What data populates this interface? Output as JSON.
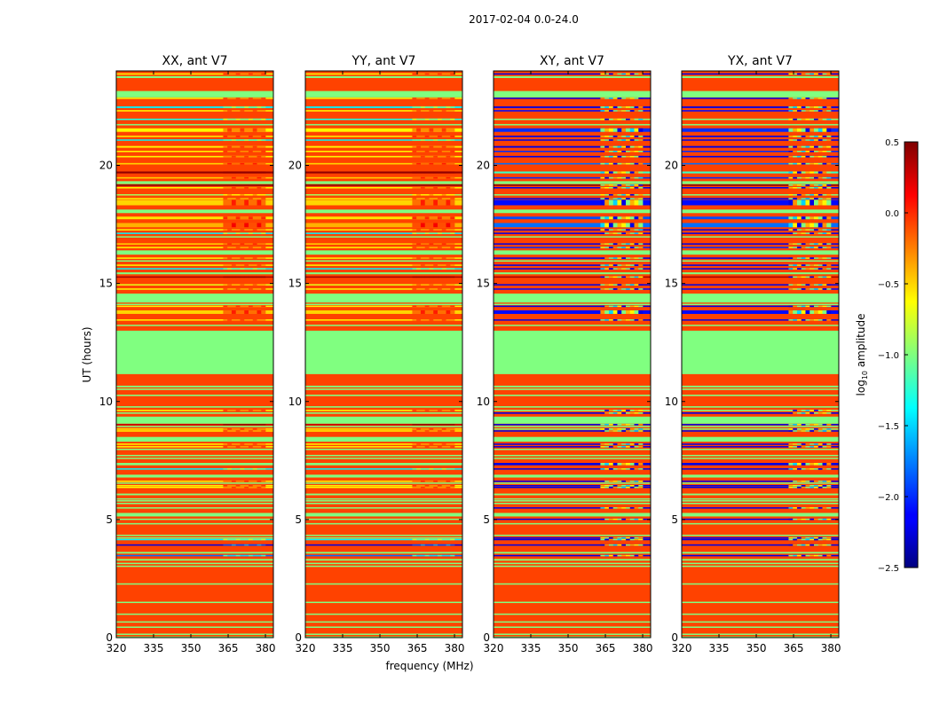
{
  "chart_data": {
    "type": "heatmap",
    "title": "2017-02-04 0.0-24.0",
    "xlabel": "frequency (MHz)",
    "ylabel": "UT (hours)",
    "xlim": [
      320,
      383.2
    ],
    "ylim": [
      0,
      24
    ],
    "xticks": [
      320,
      335,
      350,
      365,
      380
    ],
    "yticks": [
      0,
      5,
      10,
      15,
      20
    ],
    "colormap": "jet",
    "colorbar": {
      "label": "log10 amplitude",
      "label_main": "log",
      "label_sub": "10",
      "label_rest": " amplitude",
      "range": [
        -2.5,
        0.5
      ],
      "ticks": [
        0.5,
        0.0,
        -0.5,
        -1.0,
        -1.5,
        -2.0,
        -2.5
      ],
      "tick_labels": [
        "0.5",
        "0.0",
        "−0.5",
        "−1.0",
        "−1.5",
        "−2.0",
        "−2.5"
      ]
    },
    "panels": [
      {
        "title": "XX, ant V7",
        "pol": "auto"
      },
      {
        "title": "YY, ant V7",
        "pol": "auto"
      },
      {
        "title": "XY, ant V7",
        "pol": "cross"
      },
      {
        "title": "YX, ant V7",
        "pol": "cross"
      }
    ],
    "background_value": -0.07,
    "rfi_freq_range_MHz": [
      363,
      380
    ],
    "band_columns": [
      "ut_start_h",
      "ut_end_h",
      "value_auto",
      "value_cross"
    ],
    "bands": [
      [
        23.85,
        23.9,
        -0.6,
        -2.2
      ],
      [
        23.7,
        23.78,
        -1.0,
        -1.0
      ],
      [
        22.88,
        23.15,
        -1.0,
        -1.0
      ],
      [
        22.82,
        22.87,
        -0.6,
        -2.2
      ],
      [
        22.43,
        22.5,
        -1.4,
        -2.2
      ],
      [
        22.29,
        22.34,
        -0.6,
        -2.1
      ],
      [
        21.92,
        21.98,
        -1.3,
        -1.0
      ],
      [
        21.7,
        21.75,
        -1.0,
        -1.0
      ],
      [
        21.42,
        21.57,
        -0.6,
        -2.0
      ],
      [
        21.2,
        21.26,
        -0.55,
        -2.2
      ],
      [
        21.05,
        21.1,
        -1.4,
        -2.2
      ],
      [
        20.75,
        20.82,
        -0.6,
        -2.2
      ],
      [
        20.57,
        20.62,
        -0.6,
        -2.0
      ],
      [
        20.34,
        20.4,
        -0.6,
        -2.2
      ],
      [
        20.04,
        20.1,
        -0.5,
        -1.8
      ],
      [
        19.66,
        19.74,
        0.45,
        -1.2
      ],
      [
        19.45,
        19.5,
        -0.5,
        -2.0
      ],
      [
        19.21,
        19.33,
        -1.0,
        -1.0
      ],
      [
        19.15,
        19.19,
        0.5,
        0.5
      ],
      [
        19.03,
        19.08,
        -0.6,
        -2.2
      ],
      [
        18.73,
        18.78,
        -0.9,
        -1.0
      ],
      [
        18.57,
        18.62,
        -0.6,
        -2.2
      ],
      [
        18.31,
        18.54,
        -0.5,
        -2.1
      ],
      [
        17.98,
        18.13,
        -1.0,
        -1.0
      ],
      [
        17.72,
        17.83,
        -0.55,
        -1.9
      ],
      [
        17.38,
        17.56,
        -0.4,
        -1.8
      ],
      [
        17.25,
        17.3,
        -0.6,
        -2.2
      ],
      [
        17.1,
        17.15,
        -1.4,
        -2.2
      ],
      [
        16.95,
        17.0,
        -1.0,
        -1.0
      ],
      [
        16.65,
        16.7,
        -0.5,
        -2.2
      ],
      [
        16.5,
        16.55,
        -0.6,
        -2.0
      ],
      [
        16.22,
        16.4,
        -1.0,
        -1.0
      ],
      [
        16.05,
        16.1,
        -0.6,
        -2.2
      ],
      [
        15.93,
        15.98,
        -1.0,
        -1.0
      ],
      [
        15.75,
        15.8,
        -0.6,
        -2.2
      ],
      [
        15.6,
        15.65,
        -1.4,
        -2.2
      ],
      [
        15.39,
        15.47,
        -1.0,
        -1.0
      ],
      [
        15.26,
        15.3,
        0.4,
        0.4
      ],
      [
        14.92,
        14.97,
        -0.7,
        -2.2
      ],
      [
        14.74,
        14.79,
        -0.6,
        -2.1
      ],
      [
        14.19,
        14.57,
        -1.0,
        -1.0
      ],
      [
        14.1,
        14.14,
        -1.0,
        -1.0
      ],
      [
        14.02,
        14.06,
        -0.6,
        -2.2
      ],
      [
        13.71,
        13.86,
        -0.5,
        -2.1
      ],
      [
        13.43,
        13.48,
        -0.6,
        -2.2
      ],
      [
        13.2,
        13.25,
        -1.0,
        -1.0
      ],
      [
        11.16,
        13.0,
        -1.0,
        -1.0
      ],
      [
        10.6,
        10.67,
        -1.0,
        -1.0
      ],
      [
        10.49,
        10.55,
        -1.0,
        -1.0
      ],
      [
        10.23,
        10.29,
        -1.0,
        -1.0
      ],
      [
        9.74,
        9.8,
        -1.0,
        -1.0
      ],
      [
        9.6,
        9.65,
        -0.6,
        -1.0
      ],
      [
        9.48,
        9.54,
        -1.0,
        -2.2
      ],
      [
        9.06,
        9.36,
        -1.0,
        -1.0
      ],
      [
        9.0,
        9.05,
        0.3,
        -2.2
      ],
      [
        8.93,
        8.97,
        -1.0,
        -1.0
      ],
      [
        8.82,
        8.86,
        -0.6,
        -1.0
      ],
      [
        8.74,
        8.78,
        -0.6,
        -2.2
      ],
      [
        8.3,
        8.5,
        -1.0,
        -1.0
      ],
      [
        8.18,
        8.22,
        -0.6,
        -2.2
      ],
      [
        8.07,
        8.11,
        -0.6,
        -2.2
      ],
      [
        7.96,
        8.0,
        -1.0,
        -1.0
      ],
      [
        7.7,
        7.74,
        -1.0,
        -1.0
      ],
      [
        7.58,
        7.62,
        -1.0,
        -1.0
      ],
      [
        7.3,
        7.4,
        -1.0,
        -2.2
      ],
      [
        7.13,
        7.17,
        -1.4,
        -2.2
      ],
      [
        6.78,
        6.9,
        -1.0,
        -1.0
      ],
      [
        6.61,
        6.65,
        -0.6,
        -2.2
      ],
      [
        6.53,
        6.57,
        -1.0,
        -1.0
      ],
      [
        6.42,
        6.46,
        -0.6,
        -2.2
      ],
      [
        6.35,
        6.39,
        -0.6,
        -2.2
      ],
      [
        6.03,
        6.1,
        -1.0,
        -1.0
      ],
      [
        5.86,
        5.9,
        -1.0,
        -1.0
      ],
      [
        5.78,
        5.82,
        -1.0,
        -1.0
      ],
      [
        5.67,
        5.71,
        -1.0,
        -1.0
      ],
      [
        5.48,
        5.52,
        -1.0,
        -2.2
      ],
      [
        5.13,
        5.28,
        -1.0,
        -1.0
      ],
      [
        5.0,
        5.04,
        -1.0,
        -2.2
      ],
      [
        4.81,
        4.85,
        -1.0,
        -1.0
      ],
      [
        4.32,
        4.36,
        -1.0,
        -1.0
      ],
      [
        4.21,
        4.25,
        -1.0,
        -2.2
      ],
      [
        4.14,
        4.18,
        -1.4,
        -2.2
      ],
      [
        3.91,
        3.95,
        -2.2,
        -2.2
      ],
      [
        3.56,
        3.63,
        -1.0,
        -1.0
      ],
      [
        3.46,
        3.5,
        -1.8,
        -2.2
      ],
      [
        3.26,
        3.33,
        -1.0,
        -1.0
      ],
      [
        3.13,
        3.17,
        -1.0,
        -1.0
      ],
      [
        3.01,
        3.05,
        -1.0,
        -1.0
      ],
      [
        2.26,
        2.3,
        -1.0,
        -1.0
      ],
      [
        1.48,
        1.52,
        -1.0,
        -1.0
      ],
      [
        0.98,
        1.02,
        -1.0,
        -1.0
      ],
      [
        0.65,
        0.69,
        -1.0,
        -1.0
      ],
      [
        0.43,
        0.47,
        -1.0,
        -1.0
      ],
      [
        0.13,
        0.17,
        -1.0,
        -1.0
      ],
      [
        0.0,
        0.05,
        -1.0,
        -1.0
      ]
    ]
  }
}
